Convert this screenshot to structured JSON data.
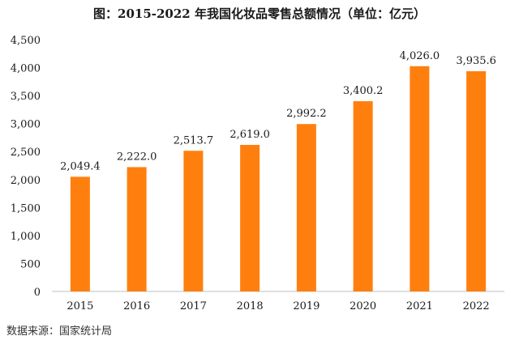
{
  "title": "图：2015-2022 年我国化妆品零售总额情况（单位：亿元）",
  "source": "数据来源：国家统计局",
  "chart_data": {
    "type": "bar",
    "title": "图：2015-2022 年我国化妆品零售总额情况（单位：亿元）",
    "categories": [
      "2015",
      "2016",
      "2017",
      "2018",
      "2019",
      "2020",
      "2021",
      "2022"
    ],
    "values": [
      2049.4,
      2222.0,
      2513.7,
      2619.0,
      2992.2,
      3400.2,
      4026.0,
      3935.6
    ],
    "value_labels": [
      "2,049.4",
      "2,222.0",
      "2,513.7",
      "2,619.0",
      "2,992.2",
      "3,400.2",
      "4,026.0",
      "3,935.6"
    ],
    "yticks": [
      0,
      500,
      1000,
      1500,
      2000,
      2500,
      3000,
      3500,
      4000,
      4500
    ],
    "ytick_labels": [
      "0",
      "500",
      "1,000",
      "1,500",
      "2,000",
      "2,500",
      "3,000",
      "3,500",
      "4,000",
      "4,500"
    ],
    "ylim": [
      0,
      4500
    ],
    "xlabel": "",
    "ylabel": "",
    "grid": false,
    "legend": "none",
    "bar_color": "#FF7F0E"
  }
}
